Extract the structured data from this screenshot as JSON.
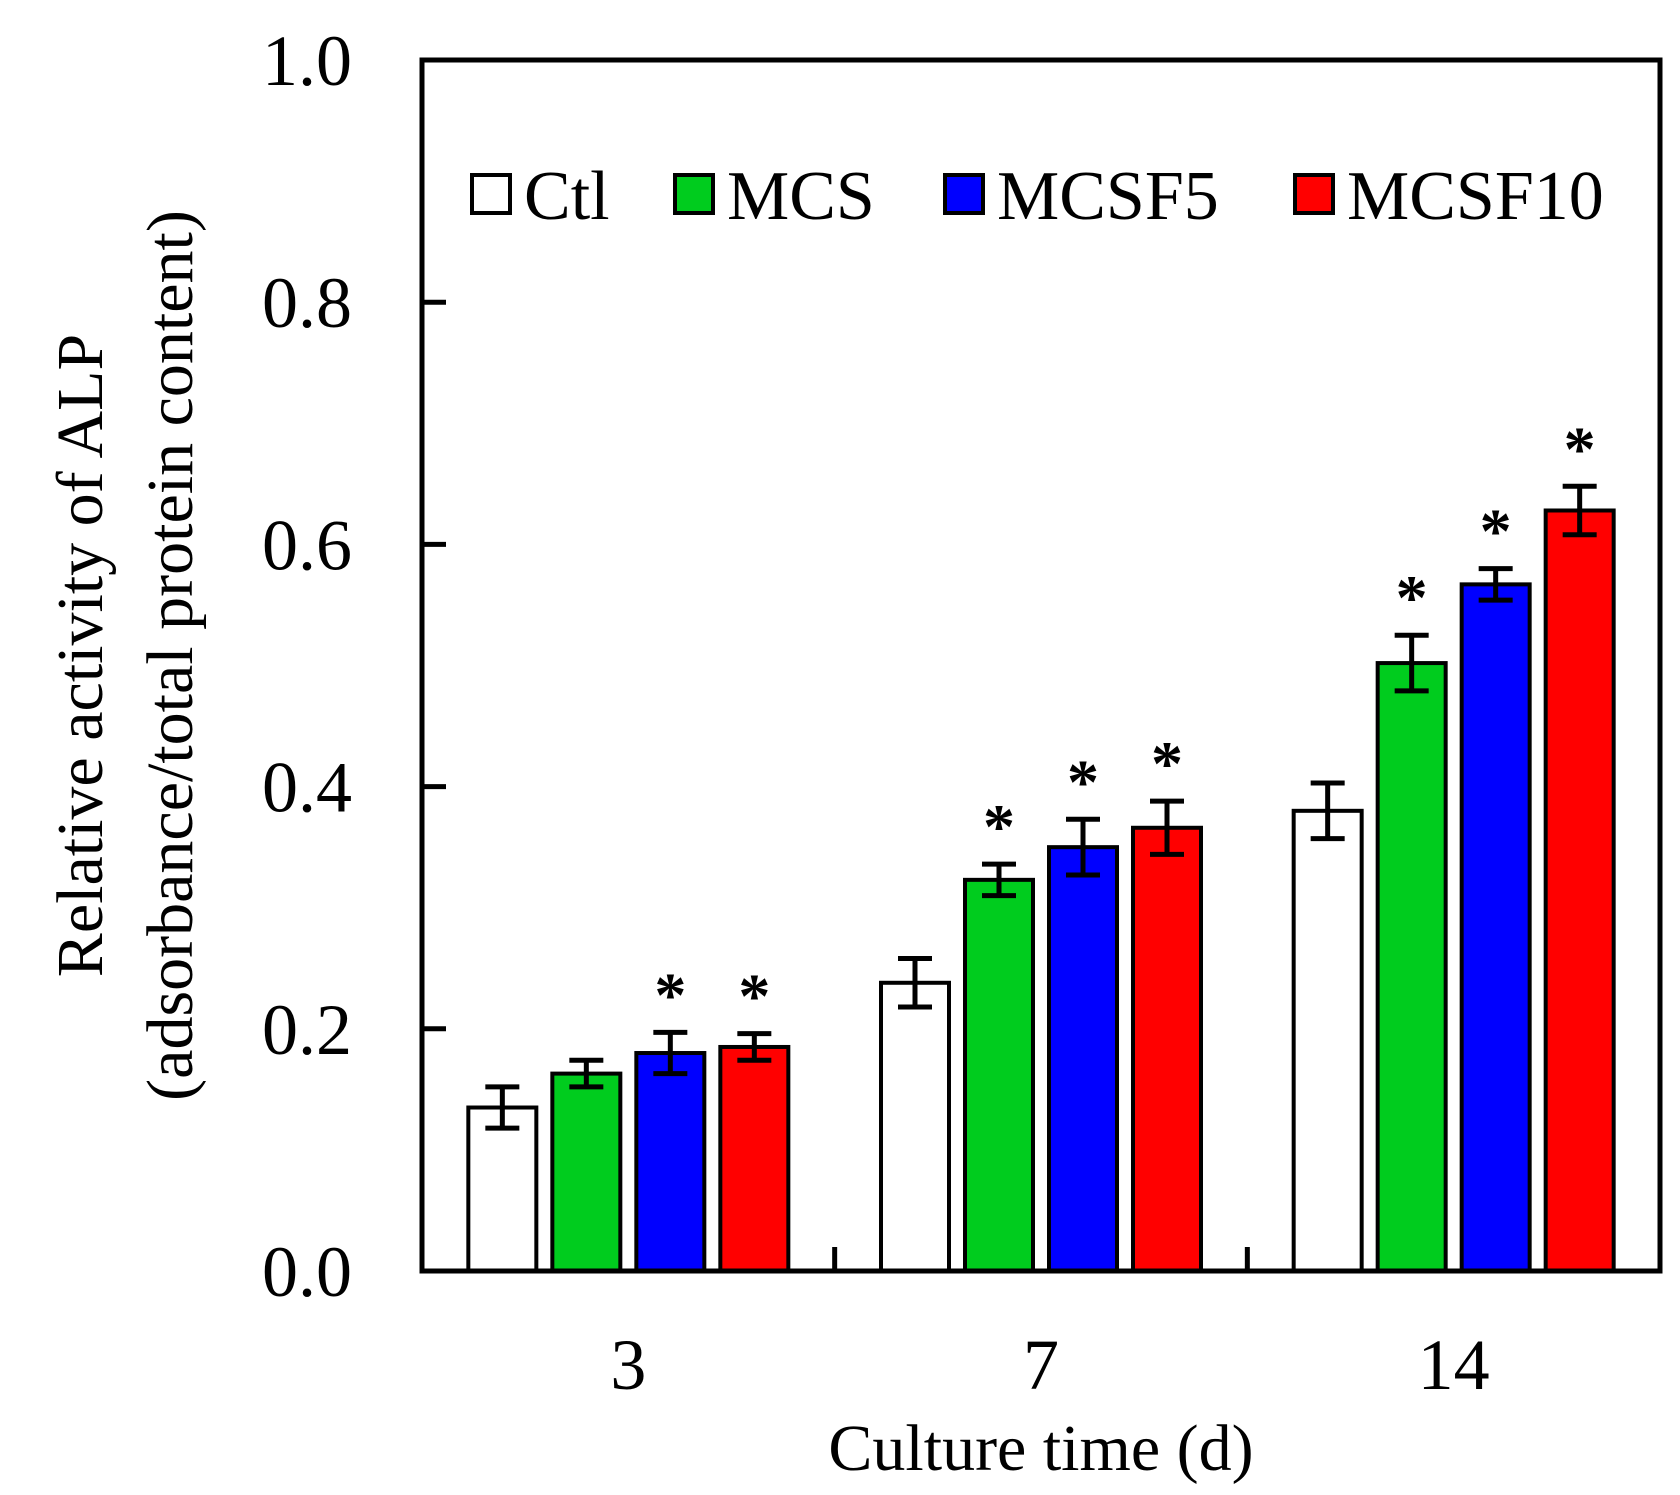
{
  "chart_data": {
    "type": "bar",
    "xlabel": "Culture time (d)",
    "ylabel_line1": "Relative activity of ALP",
    "ylabel_line2": "(adsorbance/total protein content)",
    "ylim": [
      0.0,
      1.0
    ],
    "yticks": [
      "0.0",
      "0.2",
      "0.4",
      "0.6",
      "0.8",
      "1.0"
    ],
    "ytick_values": [
      0.0,
      0.2,
      0.4,
      0.6,
      0.8,
      1.0
    ],
    "categories": [
      "3",
      "7",
      "14"
    ],
    "legend_position": "top",
    "series": [
      {
        "name": "Ctl",
        "color": "#ffffff",
        "values": [
          0.135,
          0.238,
          0.38
        ],
        "errors": [
          0.017,
          0.02,
          0.023
        ],
        "significant": [
          false,
          false,
          false
        ]
      },
      {
        "name": "MCS",
        "color": "#00cc1e",
        "values": [
          0.163,
          0.323,
          0.502
        ],
        "errors": [
          0.011,
          0.013,
          0.023
        ],
        "significant": [
          false,
          true,
          true
        ]
      },
      {
        "name": "MCSF5",
        "color": "#0000ff",
        "values": [
          0.18,
          0.35,
          0.567
        ],
        "errors": [
          0.017,
          0.023,
          0.013
        ],
        "significant": [
          true,
          true,
          true
        ]
      },
      {
        "name": "MCSF10",
        "color": "#ff0000",
        "values": [
          0.185,
          0.366,
          0.628
        ],
        "errors": [
          0.011,
          0.022,
          0.02
        ],
        "significant": [
          true,
          true,
          true
        ]
      }
    ],
    "significance_marker": "*"
  }
}
